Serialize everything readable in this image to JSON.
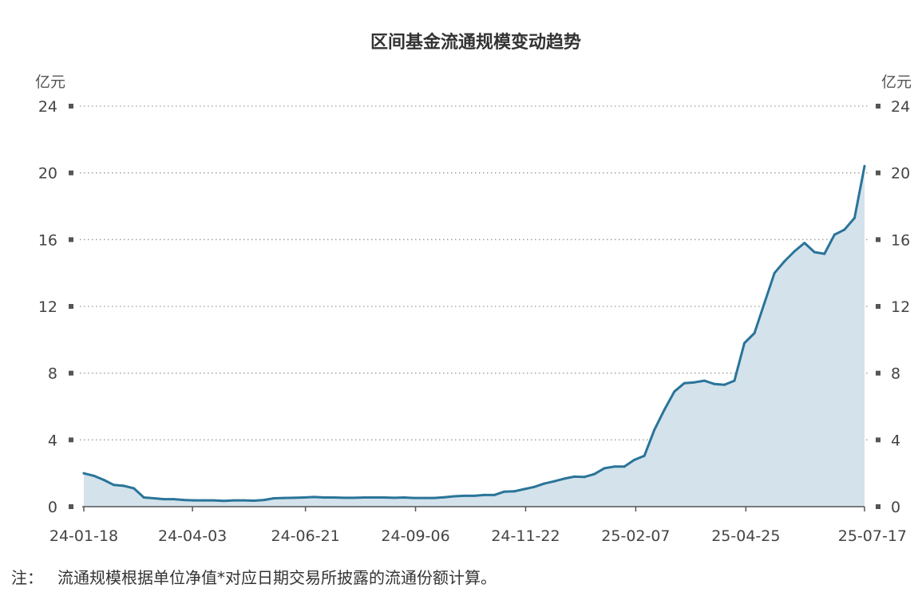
{
  "chart_data": {
    "type": "area",
    "title": "区间基金流通规模变动趋势",
    "y_unit_left": "亿元",
    "y_unit_right": "亿元",
    "ylim": [
      0,
      24
    ],
    "y_ticks": [
      0,
      4,
      8,
      12,
      16,
      20,
      24
    ],
    "y_tick_labels": [
      "0",
      "4",
      "8",
      "12",
      "16",
      "20",
      "24"
    ],
    "x_tick_labels": [
      "24-01-18",
      "24-04-03",
      "24-06-21",
      "24-09-06",
      "24-11-22",
      "25-02-07",
      "25-04-25",
      "25-07-17"
    ],
    "x_tick_dates": [
      "2024-01-18",
      "2024-04-03",
      "2024-06-21",
      "2024-09-06",
      "2024-11-22",
      "2025-02-07",
      "2025-04-25",
      "2025-07-17"
    ],
    "grid": true,
    "colors": {
      "line": "#2a7499",
      "fill": "#d3e2eb",
      "grid": "#9a9a9a",
      "axis": "#555555"
    },
    "series": [
      {
        "x": [
          "2024-01-18",
          "2024-01-25",
          "2024-02-01",
          "2024-02-08",
          "2024-02-15",
          "2024-02-22",
          "2024-02-29",
          "2024-03-07",
          "2024-03-14",
          "2024-03-21",
          "2024-03-28",
          "2024-04-04",
          "2024-04-11",
          "2024-04-18",
          "2024-04-25",
          "2024-05-02",
          "2024-05-09",
          "2024-05-16",
          "2024-05-23",
          "2024-05-30",
          "2024-06-06",
          "2024-06-13",
          "2024-06-20",
          "2024-06-27",
          "2024-07-04",
          "2024-07-11",
          "2024-07-18",
          "2024-07-25",
          "2024-08-01",
          "2024-08-08",
          "2024-08-15",
          "2024-08-22",
          "2024-08-29",
          "2024-09-05",
          "2024-09-12",
          "2024-09-19",
          "2024-09-26",
          "2024-10-03",
          "2024-10-10",
          "2024-10-17",
          "2024-10-24",
          "2024-10-31",
          "2024-11-07",
          "2024-11-14",
          "2024-11-21",
          "2024-11-28",
          "2024-12-05",
          "2024-12-12",
          "2024-12-19",
          "2024-12-26",
          "2025-01-02",
          "2025-01-09",
          "2025-01-16",
          "2025-01-23",
          "2025-01-30",
          "2025-02-06",
          "2025-02-13",
          "2025-02-20",
          "2025-02-27",
          "2025-03-06",
          "2025-03-13",
          "2025-03-20",
          "2025-03-27",
          "2025-04-03",
          "2025-04-10",
          "2025-04-17",
          "2025-04-24",
          "2025-05-01",
          "2025-05-08",
          "2025-05-15",
          "2025-05-22",
          "2025-05-29",
          "2025-06-05",
          "2025-06-12",
          "2025-06-19",
          "2025-06-26",
          "2025-07-03",
          "2025-07-10",
          "2025-07-17"
        ],
        "values": [
          2.0,
          1.85,
          1.6,
          1.3,
          1.25,
          1.1,
          0.55,
          0.5,
          0.45,
          0.45,
          0.4,
          0.38,
          0.38,
          0.38,
          0.35,
          0.38,
          0.38,
          0.36,
          0.4,
          0.5,
          0.52,
          0.53,
          0.55,
          0.58,
          0.55,
          0.55,
          0.53,
          0.53,
          0.55,
          0.55,
          0.55,
          0.53,
          0.55,
          0.52,
          0.52,
          0.52,
          0.56,
          0.62,
          0.65,
          0.65,
          0.7,
          0.7,
          0.9,
          0.92,
          1.05,
          1.18,
          1.38,
          1.52,
          1.68,
          1.8,
          1.78,
          1.95,
          2.3,
          2.4,
          2.4,
          2.8,
          3.05,
          4.6,
          5.8,
          6.9,
          7.4,
          7.45,
          7.55,
          7.35,
          7.3,
          7.55,
          9.8,
          10.4,
          12.2,
          14.0,
          14.7,
          15.3,
          15.8,
          15.25,
          15.15,
          16.3,
          16.6,
          17.3,
          20.4
        ]
      }
    ]
  },
  "footnote": {
    "label": "注：",
    "text": "流通规模根据单位净值*对应日期交易所披露的流通份额计算。"
  }
}
